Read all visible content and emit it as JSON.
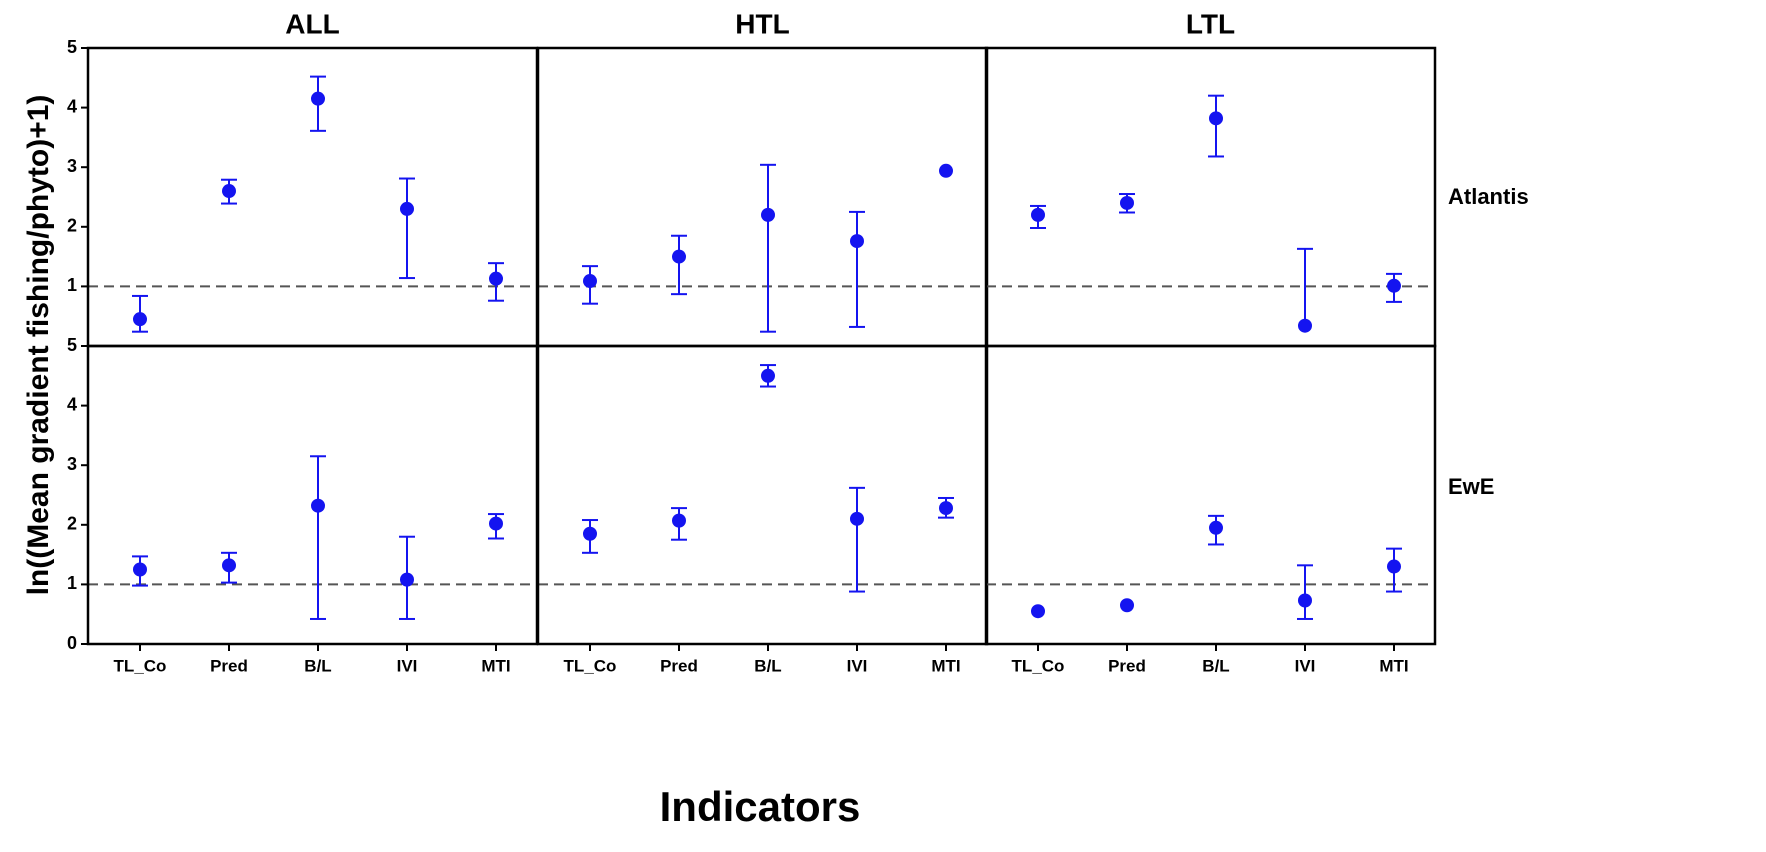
{
  "figure": {
    "y_label": "ln((Mean gradient fishing/phyto)+1)",
    "x_label": "Indicators",
    "columns": [
      "ALL",
      "HTL",
      "LTL"
    ],
    "rows": [
      "Atlantis",
      "EwE"
    ]
  },
  "chart_data": [
    {
      "type": "errorbar",
      "color": "#1414f0",
      "ylim": [
        0,
        5
      ],
      "yticks": [
        1,
        2,
        3,
        4,
        5
      ],
      "ref_line": 1,
      "values": [
        0.45,
        2.6,
        4.15,
        2.3,
        1.13
      ],
      "lower": [
        0.24,
        2.39,
        3.61,
        1.14,
        0.76
      ],
      "upper": [
        0.84,
        2.79,
        4.52,
        2.81,
        1.39
      ]
    },
    {
      "type": "errorbar",
      "color": "#1414f0",
      "ylim": [
        0,
        5
      ],
      "ref_line": 1,
      "values": [
        1.09,
        1.5,
        2.2,
        1.76,
        2.94
      ],
      "lower": [
        0.71,
        0.87,
        0.24,
        0.32,
        null
      ],
      "upper": [
        1.34,
        1.85,
        3.04,
        2.25,
        null
      ]
    },
    {
      "type": "errorbar",
      "color": "#1414f0",
      "ylim": [
        0,
        5
      ],
      "ref_line": 1,
      "values": [
        2.2,
        2.4,
        3.82,
        0.34,
        1.01
      ],
      "lower": [
        1.98,
        2.24,
        3.18,
        null,
        0.74
      ],
      "upper": [
        2.35,
        2.55,
        4.2,
        1.63,
        1.21
      ]
    },
    {
      "type": "errorbar",
      "color": "#1414f0",
      "ylim": [
        0,
        5
      ],
      "yticks": [
        0,
        1,
        2,
        3,
        4,
        5
      ],
      "ref_line": 1,
      "categories": [
        "TL_Co",
        "Pred",
        "B/L",
        "IVI",
        "MTI"
      ],
      "values": [
        1.25,
        1.32,
        2.32,
        1.08,
        2.02
      ],
      "lower": [
        0.98,
        1.03,
        0.42,
        0.42,
        1.77
      ],
      "upper": [
        1.47,
        1.53,
        3.15,
        1.8,
        2.18
      ]
    },
    {
      "type": "errorbar",
      "color": "#1414f0",
      "ylim": [
        0,
        5
      ],
      "ref_line": 1,
      "categories": [
        "TL_Co",
        "Pred",
        "B/L",
        "IVI",
        "MTI"
      ],
      "values": [
        1.85,
        2.07,
        4.5,
        2.1,
        2.28
      ],
      "lower": [
        1.53,
        1.75,
        4.32,
        0.88,
        2.12
      ],
      "upper": [
        2.08,
        2.28,
        4.68,
        2.62,
        2.45
      ]
    },
    {
      "type": "errorbar",
      "color": "#1414f0",
      "ylim": [
        0,
        5
      ],
      "ref_line": 1,
      "categories": [
        "TL_Co",
        "Pred",
        "B/L",
        "IVI",
        "MTI"
      ],
      "values": [
        0.55,
        0.65,
        1.95,
        0.73,
        1.3
      ],
      "lower": [
        null,
        null,
        1.67,
        0.42,
        0.88
      ],
      "upper": [
        null,
        null,
        2.15,
        1.32,
        1.6
      ]
    }
  ]
}
